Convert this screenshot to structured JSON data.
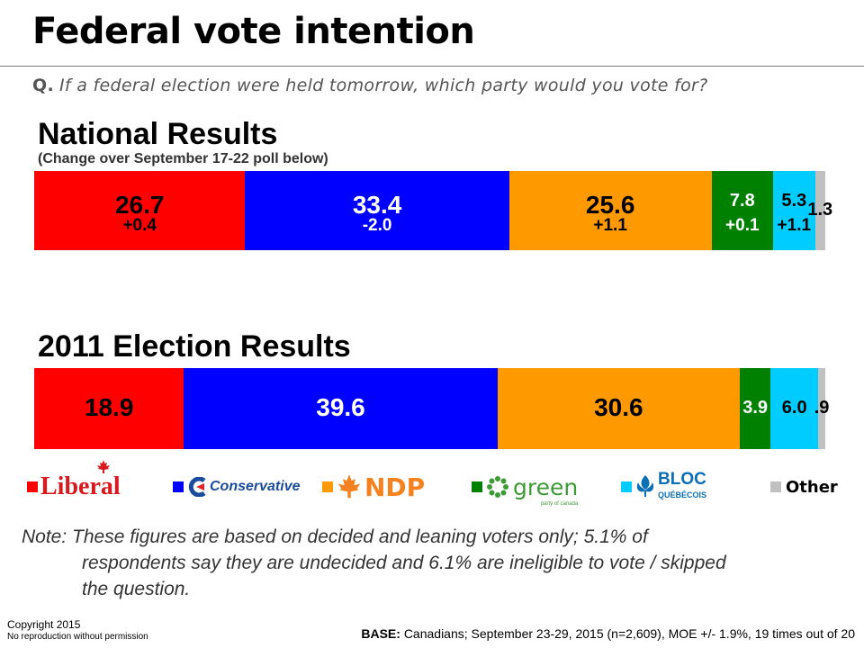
{
  "slide": {
    "title": "Federal vote intention",
    "question_label": "Q.",
    "question_text": "If a federal election were held tomorrow, which party would you vote for?",
    "national_title": "National Results",
    "national_subtitle": "(Change over September 17-22 poll below)",
    "election_title": "2011 Election Results",
    "note_line1": "Note: These figures are based on decided and leaning voters only; 5.1% of",
    "note_line2": "respondents say they are undecided and 6.1% are ineligible to vote / skipped",
    "note_line3": "the question.",
    "copyright": "Copyright 2015",
    "copyright_sub": "No reproduction without permission",
    "base_label": "BASE:",
    "base_text": "Canadians; September 23-29, 2015 (n=2,609), MOE +/- 1.9%, 19 times out of 20"
  },
  "legend": [
    {
      "label": "Liberal",
      "color": "#ff0000",
      "icon": "maple-leaf-icon"
    },
    {
      "label": "Conservative",
      "color": "#0000ff",
      "icon": "conservative-c-icon"
    },
    {
      "label": "NDP",
      "color": "#ff9900",
      "icon": "maple-leaf-icon"
    },
    {
      "label": "green",
      "sublabel": "party of canada",
      "color": "#008000",
      "icon": "flower-icon"
    },
    {
      "label": "BLOC",
      "sublabel": "QUÉBÉCOIS",
      "color": "#00ccff",
      "icon": "fleur-de-lis-icon"
    },
    {
      "label": "Other",
      "color": "#c0c0c0"
    }
  ],
  "chart_data": [
    {
      "type": "bar",
      "stacked": true,
      "orientation": "horizontal",
      "title": "National Results",
      "subtitle": "(Change over September 17-22 poll below)",
      "categories": [
        "Liberal",
        "Conservative",
        "NDP",
        "Green",
        "Bloc Québécois",
        "Other"
      ],
      "values": [
        26.7,
        33.4,
        25.6,
        7.8,
        5.3,
        1.3
      ],
      "value_labels": [
        "26.7",
        "33.4",
        "25.6",
        "7.8",
        "5.3",
        "1.3"
      ],
      "change_labels": [
        "+0.4",
        "-2.0",
        "+1.1",
        "+0.1",
        "+1.1",
        ""
      ],
      "colors": [
        "#ff0000",
        "#0000ff",
        "#ff9900",
        "#008000",
        "#00ccff",
        "#c0c0c0"
      ]
    },
    {
      "type": "bar",
      "stacked": true,
      "orientation": "horizontal",
      "title": "2011 Election Results",
      "categories": [
        "Liberal",
        "Conservative",
        "NDP",
        "Green",
        "Bloc Québécois",
        "Other"
      ],
      "values": [
        18.9,
        39.6,
        30.6,
        3.9,
        6.0,
        0.9
      ],
      "value_labels": [
        "18.9",
        "39.6",
        "30.6",
        "3.9",
        "6.0",
        ".9"
      ],
      "change_labels": [
        "",
        "",
        "",
        "",
        "",
        ""
      ],
      "colors": [
        "#ff0000",
        "#0000ff",
        "#ff9900",
        "#008000",
        "#00ccff",
        "#c0c0c0"
      ]
    }
  ]
}
